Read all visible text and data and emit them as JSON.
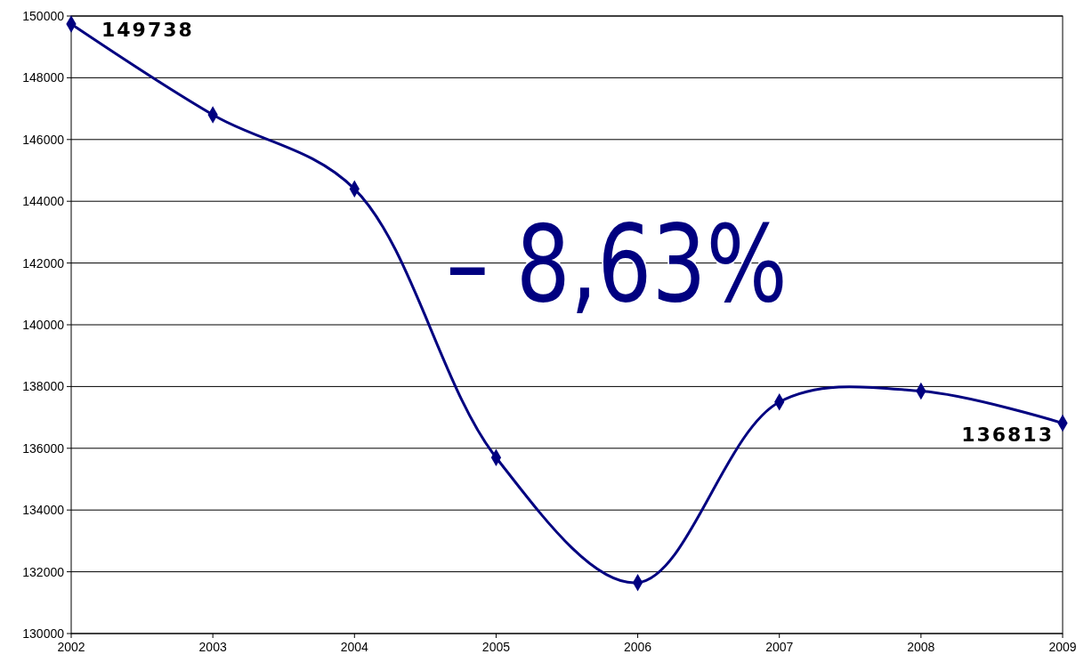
{
  "chart_data": {
    "type": "line",
    "x": [
      2002,
      2003,
      2004,
      2005,
      2006,
      2007,
      2008,
      2009
    ],
    "series": [
      {
        "color": "#000080",
        "values": [
          149738,
          146800,
          144400,
          135700,
          131650,
          137500,
          137850,
          136813
        ],
        "value_labels": [
          "149738",
          null,
          null,
          null,
          null,
          null,
          null,
          "136813"
        ]
      }
    ],
    "xlim": [
      2002,
      2009
    ],
    "xticks": [
      2002,
      2003,
      2004,
      2005,
      2006,
      2007,
      2008,
      2009
    ],
    "ylim": [
      130000,
      150000
    ],
    "yticks": [
      130000,
      132000,
      134000,
      136000,
      138000,
      140000,
      142000,
      144000,
      146000,
      148000,
      150000
    ],
    "grid": "y",
    "marker": "diamond",
    "line_style": "solid",
    "annotations": [
      "– 8,63%"
    ]
  }
}
